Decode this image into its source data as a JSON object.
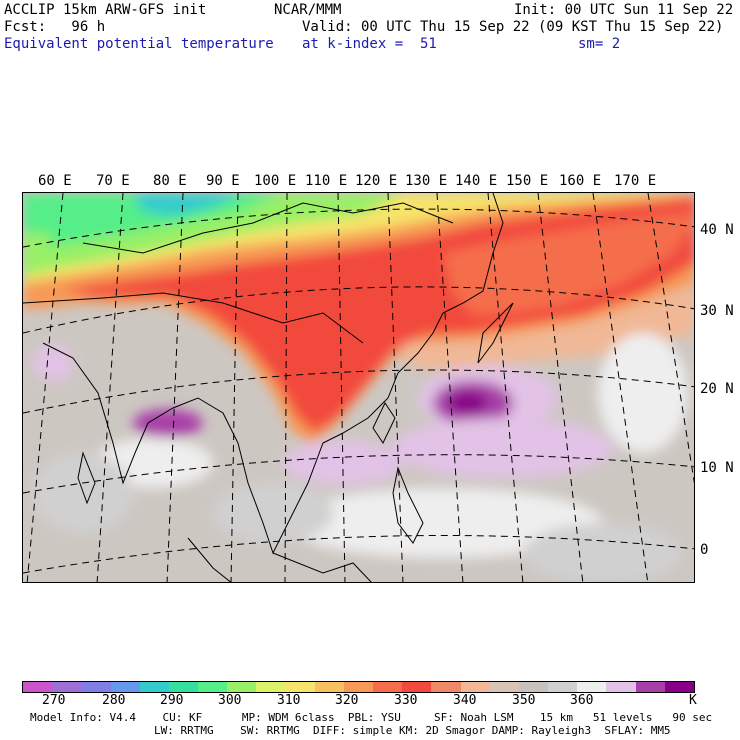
{
  "header": {
    "model": "ACCLIP 15km ARW-GFS init",
    "forecast": "Fcst:   96 h",
    "field": "Equivalent potential temperature",
    "institution": "NCAR/MMM",
    "valid": "Valid: 00 UTC Thu 15 Sep 22 (09 KST Thu 15 Sep 22)",
    "level": "at k-index =  51",
    "init": "Init: 00 UTC Sun 11 Sep 22",
    "smooth": "sm= 2"
  },
  "map": {
    "lon_labels": [
      "60 E",
      "70 E",
      "80 E",
      "90 E",
      "100 E",
      "110 E",
      "120 E",
      "130 E",
      "140 E",
      "150 E",
      "160 E",
      "170 E"
    ],
    "lat_labels": [
      "40 N",
      "30 N",
      "20 N",
      "10 N",
      "0"
    ]
  },
  "colorbar": {
    "colors": [
      "#cc55cc",
      "#9f6fd8",
      "#7f7fe6",
      "#6699ee",
      "#33cccc",
      "#33e0a0",
      "#55ee88",
      "#99f066",
      "#ddf266",
      "#f7e46a",
      "#f7c060",
      "#f79a55",
      "#f56e4c",
      "#f24a3e",
      "#f08a66",
      "#f0b896",
      "#d8c4b6",
      "#c8c2be",
      "#d0d0d0",
      "#eeeeee",
      "#e2c2e6",
      "#a93fa8",
      "#880088"
    ],
    "labels": [
      "270",
      "280",
      "290",
      "300",
      "310",
      "320",
      "330",
      "340",
      "350",
      "360",
      "K"
    ]
  },
  "footer": {
    "line1": "Model Info: V4.4    CU: KF      MP: WDM 6class  PBL: YSU     SF: Noah LSM    15 km   51 levels   90 sec",
    "line2": "LW: RRTMG    SW: RRTMG  DIFF: simple KM: 2D Smagor DAMP: Rayleigh3  SFLAY: MM5"
  }
}
